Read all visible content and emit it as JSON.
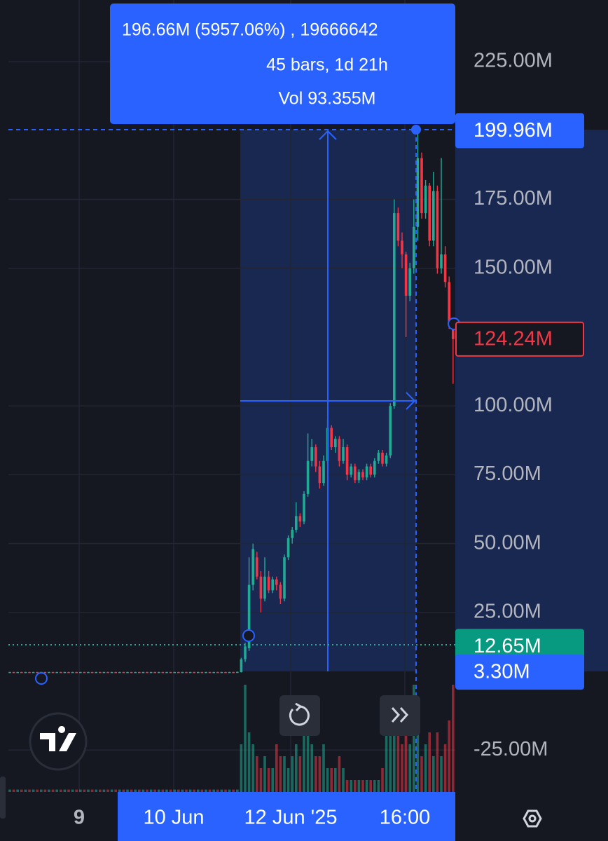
{
  "chart_data": {
    "type": "candlestick",
    "up_color": "#22ab94",
    "down_color": "#f23645",
    "grid": true,
    "ylim": [
      -40.2,
      247.4
    ],
    "yticks": [
      {
        "value": 225,
        "label": "225.00M"
      },
      {
        "value": 175,
        "label": "175.00M"
      },
      {
        "value": 150,
        "label": "150.00M"
      },
      {
        "value": 100,
        "label": "100.00M"
      },
      {
        "value": 75,
        "label": "75.00M"
      },
      {
        "value": 50,
        "label": "50.00M"
      },
      {
        "value": 25,
        "label": "25.00M"
      },
      {
        "value": -25,
        "label": "-25.00M"
      }
    ],
    "x_labels": [
      "9",
      "10 Jun",
      "12 Jun '25",
      "16:00"
    ],
    "measurement": {
      "line1": "196.66M (5957.06%) , 19666642",
      "line2": "45 bars, 1d 21h",
      "line3": "Vol 93.355M"
    },
    "price_labels": [
      {
        "value": 199.96,
        "label": "199.96M",
        "color": "#2962ff"
      },
      {
        "value": 124.24,
        "label": "124.24M",
        "color": "#f23645"
      },
      {
        "value": 12.65,
        "label": "12.65M",
        "color": "#089981"
      },
      {
        "value": 3.3,
        "label": "3.30M",
        "color": "#2962ff"
      }
    ],
    "ohlc": [
      [
        3.3,
        3.4,
        3.2,
        3.35
      ],
      [
        3.35,
        3.4,
        3.2,
        3.3
      ],
      [
        3.3,
        3.4,
        3.2,
        3.35
      ],
      [
        3.35,
        3.4,
        3.2,
        3.3
      ],
      [
        3.3,
        3.4,
        3.2,
        3.35
      ],
      [
        3.35,
        3.4,
        3.2,
        3.3
      ],
      [
        3.3,
        3.4,
        3.2,
        3.35
      ],
      [
        3.35,
        3.4,
        3.2,
        3.3
      ],
      [
        3.3,
        3.4,
        3.2,
        3.35
      ],
      [
        3.35,
        3.4,
        3.2,
        3.3
      ],
      [
        3.3,
        3.4,
        3.2,
        3.35
      ],
      [
        3.35,
        3.4,
        3.2,
        3.3
      ],
      [
        3.3,
        3.4,
        3.2,
        3.35
      ],
      [
        3.35,
        3.4,
        3.2,
        3.3
      ],
      [
        3.3,
        3.4,
        3.2,
        3.35
      ],
      [
        3.35,
        3.4,
        3.2,
        3.3
      ],
      [
        3.3,
        3.4,
        3.2,
        3.35
      ],
      [
        3.35,
        3.4,
        3.2,
        3.3
      ],
      [
        3.3,
        3.4,
        3.2,
        3.35
      ],
      [
        3.35,
        3.4,
        3.2,
        3.3
      ],
      [
        3.3,
        3.4,
        3.2,
        3.35
      ],
      [
        3.35,
        3.4,
        3.2,
        3.3
      ],
      [
        3.3,
        3.4,
        3.2,
        3.35
      ],
      [
        3.35,
        3.4,
        3.2,
        3.3
      ],
      [
        3.3,
        3.4,
        3.2,
        3.35
      ],
      [
        3.35,
        3.4,
        3.2,
        3.3
      ],
      [
        3.3,
        3.4,
        3.2,
        3.35
      ],
      [
        3.35,
        3.4,
        3.2,
        3.3
      ],
      [
        3.3,
        3.4,
        3.2,
        3.35
      ],
      [
        3.35,
        3.4,
        3.2,
        3.3
      ],
      [
        3.3,
        3.4,
        3.2,
        3.35
      ],
      [
        3.35,
        3.4,
        3.2,
        3.3
      ],
      [
        3.3,
        3.4,
        3.2,
        3.35
      ],
      [
        3.35,
        3.4,
        3.2,
        3.3
      ],
      [
        3.3,
        3.4,
        3.2,
        3.35
      ],
      [
        3.35,
        3.4,
        3.2,
        3.3
      ],
      [
        3.3,
        3.4,
        3.2,
        3.35
      ],
      [
        3.35,
        3.4,
        3.2,
        3.3
      ],
      [
        3.3,
        3.4,
        3.2,
        3.35
      ],
      [
        3.35,
        3.4,
        3.2,
        3.3
      ],
      [
        3.3,
        3.4,
        3.2,
        3.35
      ],
      [
        3.35,
        3.4,
        3.2,
        3.3
      ],
      [
        3.3,
        3.4,
        3.2,
        3.35
      ],
      [
        3.35,
        3.4,
        3.2,
        3.3
      ],
      [
        3.3,
        3.4,
        3.2,
        3.35
      ],
      [
        3.35,
        3.4,
        3.2,
        3.3
      ],
      [
        3.3,
        3.4,
        3.2,
        3.35
      ],
      [
        3.35,
        3.4,
        3.2,
        3.3
      ],
      [
        3.3,
        3.4,
        3.2,
        3.35
      ],
      [
        3.35,
        3.4,
        3.2,
        3.3
      ],
      [
        3.3,
        3.4,
        3.2,
        3.35
      ],
      [
        3.35,
        3.4,
        3.2,
        3.3
      ],
      [
        3.3,
        3.4,
        3.2,
        3.35
      ],
      [
        3.35,
        3.4,
        3.2,
        3.3
      ],
      [
        3.3,
        3.4,
        3.2,
        3.35
      ],
      [
        3.35,
        3.4,
        3.2,
        3.3
      ],
      [
        3.3,
        3.4,
        3.2,
        3.35
      ],
      [
        3.35,
        3.4,
        3.2,
        3.3
      ],
      [
        3.3,
        3.5,
        3.2,
        3.4
      ],
      [
        3.3,
        8.5,
        3.2,
        8
      ],
      [
        8,
        14,
        7,
        12.65
      ],
      [
        12,
        45,
        11,
        35
      ],
      [
        35,
        50,
        33,
        48
      ],
      [
        45,
        47,
        37,
        38
      ],
      [
        38,
        40,
        25,
        30
      ],
      [
        30,
        45,
        29,
        38
      ],
      [
        38,
        40,
        32,
        33
      ],
      [
        33,
        38,
        32,
        37
      ],
      [
        37,
        38,
        33,
        35
      ],
      [
        35,
        36,
        28,
        30
      ],
      [
        30,
        46,
        29,
        45
      ],
      [
        45,
        53,
        44,
        52
      ],
      [
        52,
        56,
        50,
        55
      ],
      [
        55,
        65,
        54,
        60
      ],
      [
        60,
        61,
        56,
        58
      ],
      [
        58,
        69,
        57,
        68
      ],
      [
        68,
        90,
        67,
        80
      ],
      [
        80,
        88,
        78,
        85
      ],
      [
        85,
        86,
        76,
        78
      ],
      [
        78,
        80,
        70,
        72
      ],
      [
        72,
        82,
        71,
        80
      ],
      [
        80,
        95,
        79,
        92
      ],
      [
        92,
        93,
        84,
        85
      ],
      [
        85,
        89,
        83,
        88
      ],
      [
        88,
        89,
        78,
        80
      ],
      [
        80,
        88,
        79,
        85
      ],
      [
        85,
        86,
        73,
        75
      ],
      [
        75,
        79,
        74,
        78
      ],
      [
        78,
        79,
        72,
        73
      ],
      [
        73,
        77,
        72,
        76
      ],
      [
        76,
        77,
        73,
        74
      ],
      [
        74,
        79,
        73,
        78
      ],
      [
        78,
        79,
        74,
        75
      ],
      [
        75,
        81,
        74,
        80
      ],
      [
        80,
        84,
        79,
        83
      ],
      [
        83,
        84,
        78,
        79
      ],
      [
        79,
        83,
        78,
        82
      ],
      [
        82,
        101,
        81,
        100
      ],
      [
        100,
        175,
        99,
        170
      ],
      [
        170,
        172,
        158,
        160
      ],
      [
        160,
        163,
        150,
        155
      ],
      [
        155,
        156,
        125,
        140
      ],
      [
        140,
        152,
        138,
        150
      ],
      [
        150,
        175,
        148,
        165
      ],
      [
        165,
        199.96,
        160,
        190
      ],
      [
        190,
        192,
        168,
        170
      ],
      [
        170,
        182,
        168,
        180
      ],
      [
        180,
        181,
        158,
        160
      ],
      [
        160,
        185,
        158,
        178
      ],
      [
        178,
        180,
        148,
        150
      ],
      [
        150,
        190,
        148,
        155
      ],
      [
        155,
        158,
        143,
        145
      ],
      [
        145,
        147,
        128,
        130
      ],
      [
        130,
        132,
        108,
        124.24
      ]
    ],
    "volume": [
      0.2,
      0.2,
      0.2,
      0.2,
      0.2,
      0.2,
      0.2,
      0.2,
      0.2,
      0.2,
      0.2,
      0.2,
      0.2,
      0.2,
      0.2,
      0.2,
      0.2,
      0.2,
      0.2,
      0.2,
      0.2,
      0.2,
      0.2,
      0.2,
      0.2,
      0.2,
      0.2,
      0.2,
      0.2,
      0.2,
      0.2,
      0.2,
      0.2,
      0.2,
      0.2,
      0.2,
      0.2,
      0.2,
      0.2,
      0.2,
      0.2,
      0.2,
      0.2,
      0.2,
      0.2,
      0.2,
      0.2,
      0.2,
      0.2,
      0.2,
      0.2,
      0.2,
      0.2,
      0.2,
      0.2,
      0.2,
      0.2,
      0.2,
      0.2,
      4,
      9,
      5,
      4,
      3,
      2,
      3,
      2,
      2,
      4,
      3,
      3,
      2,
      3,
      4,
      3,
      6,
      5,
      4,
      3,
      3,
      4,
      2,
      2,
      2,
      3,
      2,
      1,
      1,
      1,
      1,
      1,
      1,
      1,
      1,
      1,
      2,
      6,
      8,
      5,
      6,
      4,
      6,
      4,
      9,
      6,
      3,
      4,
      5,
      3,
      5,
      3,
      4,
      6,
      9
    ]
  }
}
